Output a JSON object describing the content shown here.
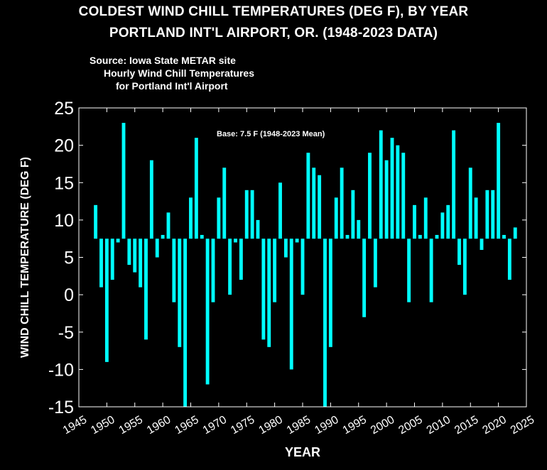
{
  "header": {
    "title_line1": "COLDEST WIND CHILL TEMPERATURES (DEG F), BY YEAR",
    "title_line2": "PORTLAND INT'L AIRPORT, OR. (1948-2023 DATA)",
    "source_line1": "Source: Iowa State METAR site",
    "source_line2": "Hourly Wind Chill Temperatures",
    "source_line3": "for Portland Int'l Airport"
  },
  "colors": {
    "background": "#000000",
    "bar": "#00ffff",
    "axis": "#ffffff",
    "text": "#ffffff"
  },
  "chart_data": {
    "type": "bar",
    "xlabel": "YEAR",
    "ylabel": "WIND CHILL TEMPERATURE (DEG F)",
    "annotation": "Base: 7.5 F (1948-2023 Mean)",
    "base": 7.5,
    "xlim": [
      1945,
      2025
    ],
    "ylim": [
      -15,
      25
    ],
    "xticks": [
      1945,
      1950,
      1955,
      1960,
      1965,
      1970,
      1975,
      1980,
      1985,
      1990,
      1995,
      2000,
      2005,
      2010,
      2015,
      2020,
      2025
    ],
    "yticks": [
      -15,
      -10,
      -5,
      0,
      5,
      10,
      15,
      20,
      25
    ],
    "grid": false,
    "x": [
      1948,
      1949,
      1950,
      1951,
      1952,
      1953,
      1954,
      1955,
      1956,
      1957,
      1958,
      1959,
      1960,
      1961,
      1962,
      1963,
      1964,
      1965,
      1966,
      1967,
      1968,
      1969,
      1970,
      1971,
      1972,
      1973,
      1974,
      1975,
      1976,
      1977,
      1978,
      1979,
      1980,
      1981,
      1982,
      1983,
      1984,
      1985,
      1986,
      1987,
      1988,
      1989,
      1990,
      1991,
      1992,
      1993,
      1994,
      1995,
      1996,
      1997,
      1998,
      1999,
      2000,
      2001,
      2002,
      2003,
      2004,
      2005,
      2006,
      2007,
      2008,
      2009,
      2010,
      2011,
      2012,
      2013,
      2014,
      2015,
      2016,
      2017,
      2018,
      2019,
      2020,
      2021,
      2022,
      2023
    ],
    "values": [
      12,
      1,
      -9,
      2,
      7,
      23,
      4,
      3,
      1,
      -6,
      18,
      5,
      8,
      11,
      -1,
      -7,
      -15,
      13,
      21,
      8,
      -12,
      -1,
      13,
      17,
      0,
      7,
      2,
      14,
      14,
      10,
      -6,
      -7,
      -1,
      15,
      5,
      -10,
      7,
      0,
      19,
      17,
      16,
      -15,
      -7,
      13,
      17,
      8,
      14,
      10,
      -3,
      19,
      1,
      22,
      18,
      21,
      20,
      19,
      -1,
      12,
      8,
      13,
      -1,
      8,
      11,
      12,
      22,
      4,
      0,
      17,
      13,
      6,
      14,
      14,
      23,
      8,
      2,
      9
    ]
  }
}
